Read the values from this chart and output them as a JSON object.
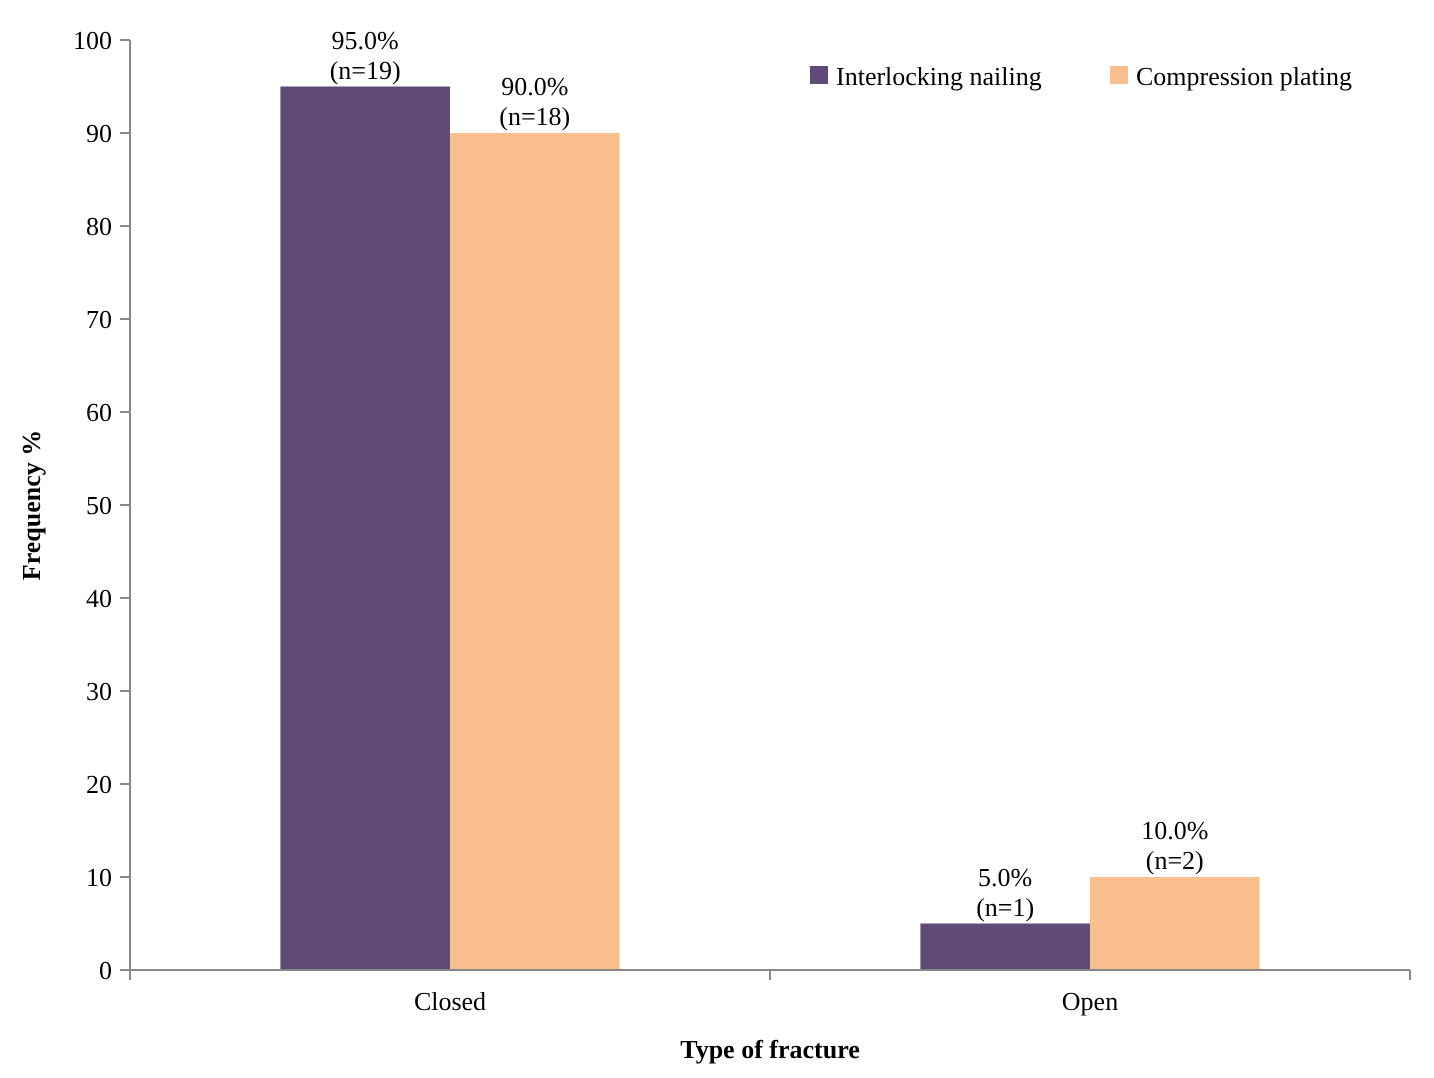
{
  "chart_data": {
    "type": "bar",
    "xlabel": "Type of fracture",
    "ylabel": "Frequency %",
    "categories": [
      "Closed",
      "Open"
    ],
    "series": [
      {
        "name": "Interlocking nailing",
        "color": "#5f4a78",
        "values": [
          95.0,
          5.0
        ],
        "value_labels": [
          "95.0%\n(n=19)",
          "5.0%\n(n=1)"
        ]
      },
      {
        "name": "Compression plating",
        "color": "#f9bf8f",
        "values": [
          90.0,
          10.0
        ],
        "value_labels": [
          "90.0%\n(n=18)",
          "10.0%\n(n=2)"
        ]
      }
    ],
    "ylim": [
      0,
      100
    ],
    "yticks": [
      0,
      10,
      20,
      30,
      40,
      50,
      60,
      70,
      80,
      90,
      100
    ],
    "grid": false,
    "legend": "top right"
  }
}
